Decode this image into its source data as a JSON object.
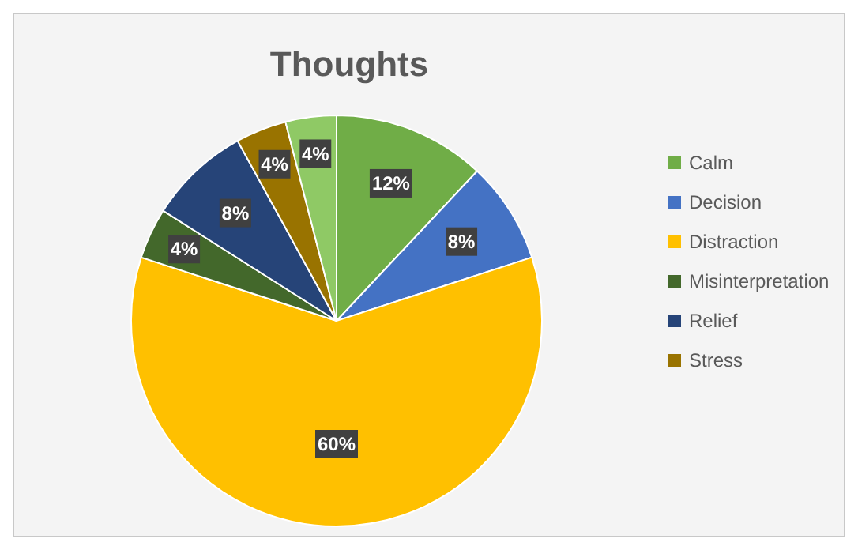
{
  "chart_data": {
    "type": "pie",
    "title": "Thoughts",
    "categories": [
      "Calm",
      "Decision",
      "Distraction",
      "Misinterpretation",
      "Relief",
      "Stress",
      null
    ],
    "values": [
      12,
      8,
      60,
      4,
      8,
      4,
      4
    ],
    "colors": [
      "#70ad47",
      "#4472c4",
      "#ffc000",
      "#43682b",
      "#264478",
      "#997300",
      "#8fc965"
    ],
    "value_labels": [
      "12%",
      "8%",
      "60%",
      "4%",
      "8%",
      "4%",
      "4%"
    ],
    "legend": "right"
  }
}
